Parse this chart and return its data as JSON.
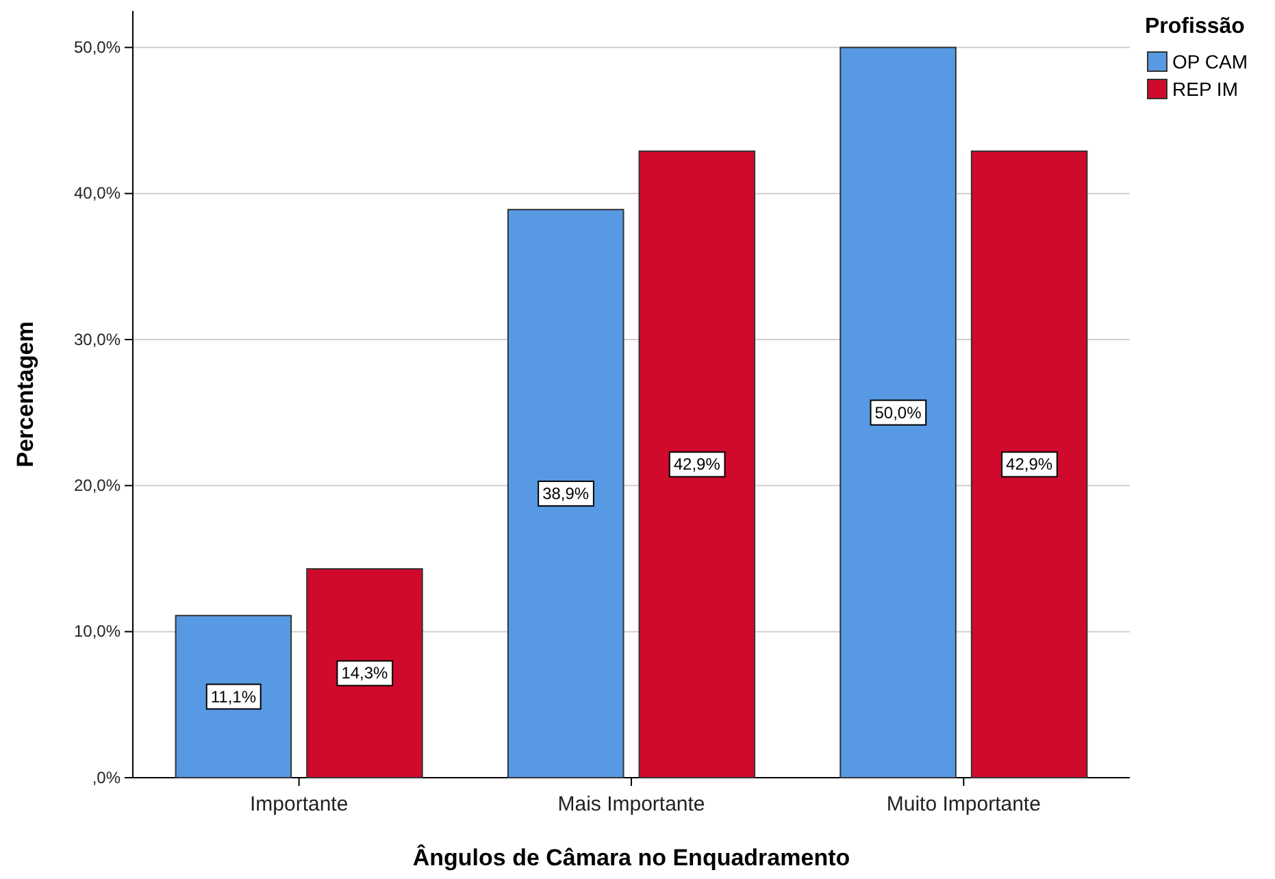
{
  "chart_data": {
    "type": "bar",
    "xlabel": "Ângulos de Câmara no Enquadramento",
    "ylabel": "Percentagem",
    "legend_title": "Profissão",
    "categories": [
      "Importante",
      "Mais Importante",
      "Muito Importante"
    ],
    "series": [
      {
        "name": "OP CAM",
        "color": "#5799e3",
        "values": [
          11.1,
          38.9,
          50.0
        ],
        "value_labels": [
          "11,1%",
          "38,9%",
          "50,0%"
        ]
      },
      {
        "name": "REP IM",
        "color": "#cf0a2c",
        "values": [
          14.3,
          42.9,
          42.9
        ],
        "value_labels": [
          "14,3%",
          "42,9%",
          "42,9%"
        ]
      }
    ],
    "ylim": [
      0,
      52.5
    ],
    "yticks": [
      {
        "value": 0,
        "label": ",0%"
      },
      {
        "value": 10,
        "label": "10,0%"
      },
      {
        "value": 20,
        "label": "20,0%"
      },
      {
        "value": 30,
        "label": "30,0%"
      },
      {
        "value": 40,
        "label": "40,0%"
      },
      {
        "value": 50,
        "label": "50,0%"
      }
    ],
    "grid": "y",
    "legend": "top right"
  }
}
